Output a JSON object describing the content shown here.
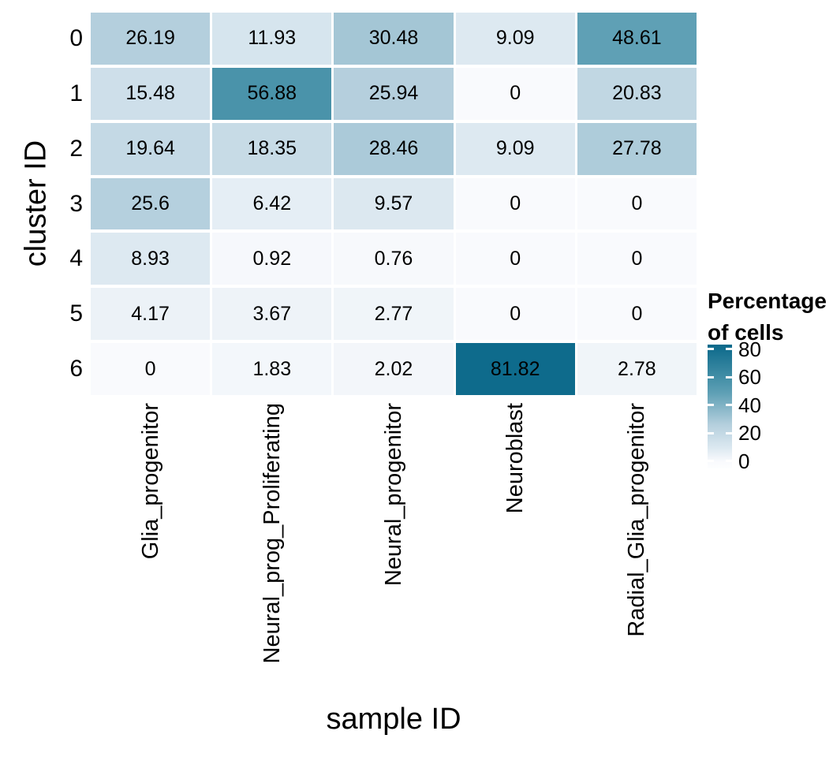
{
  "figure": {
    "background": "#ffffff",
    "y_axis_title": "cluster ID",
    "x_axis_title": "sample ID",
    "legend_title_line1": "Percentage",
    "legend_title_line2": "of cells"
  },
  "chart_data": {
    "type": "heatmap",
    "title": "",
    "xlabel": "sample ID",
    "ylabel": "cluster ID",
    "categories": [
      "Glia_progenitor",
      "Neural_prog_Proliferating",
      "Neural_progenitor",
      "Neuroblast",
      "Radial_Glia_progenitor"
    ],
    "rows": [
      "0",
      "1",
      "2",
      "3",
      "4",
      "5",
      "6"
    ],
    "values": [
      [
        26.19,
        11.93,
        30.48,
        9.09,
        48.61
      ],
      [
        15.48,
        56.88,
        25.94,
        0,
        20.83
      ],
      [
        19.64,
        18.35,
        28.46,
        9.09,
        27.78
      ],
      [
        25.6,
        6.42,
        9.57,
        0,
        0
      ],
      [
        8.93,
        0.92,
        0.76,
        0,
        0
      ],
      [
        4.17,
        3.67,
        2.77,
        0,
        0
      ],
      [
        0,
        1.83,
        2.02,
        81.82,
        2.78
      ]
    ],
    "value_range": [
      0,
      81.82
    ],
    "legend_title": "Percentage of cells",
    "legend_ticks": [
      80,
      60,
      40,
      20,
      0
    ],
    "legend_position": "right",
    "grid": false,
    "cell_label_color": "#000000",
    "color_scale_anchors": [
      [
        0,
        "#f9fafd"
      ],
      [
        9.09,
        "#dde9f1"
      ],
      [
        26.19,
        "#b4cfdd"
      ],
      [
        48.61,
        "#5fa0b5"
      ],
      [
        56.88,
        "#4a93aa"
      ],
      [
        81.82,
        "#0e6b8c"
      ]
    ]
  }
}
